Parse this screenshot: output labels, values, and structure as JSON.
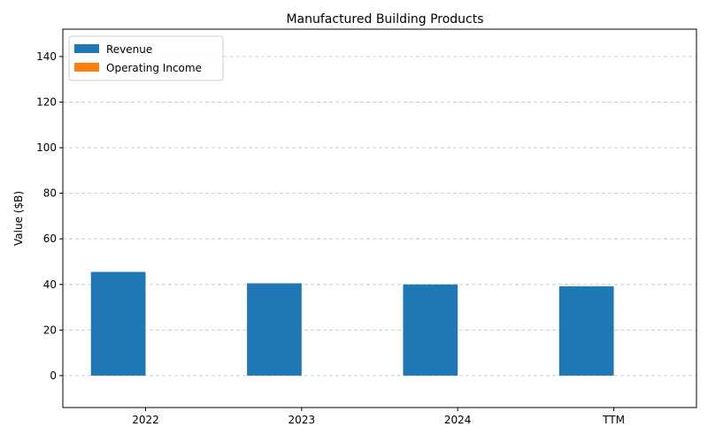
{
  "chart_data": {
    "type": "bar",
    "title": "Manufactured Building Products",
    "xlabel": "",
    "ylabel": "Value ($B)",
    "categories": [
      "2022",
      "2023",
      "2024",
      "TTM"
    ],
    "series": [
      {
        "name": "Revenue",
        "color": "#1f77b4",
        "values": [
          45.5,
          40.5,
          40.0,
          39.2
        ]
      },
      {
        "name": "Operating Income",
        "color": "#ff7f0e",
        "values": [
          0,
          0,
          0,
          0
        ]
      }
    ],
    "ylim": [
      -14,
      152
    ],
    "yticks": [
      0,
      20,
      40,
      60,
      80,
      100,
      120,
      140
    ],
    "grid": "y-dashed",
    "legend": "top-left"
  }
}
